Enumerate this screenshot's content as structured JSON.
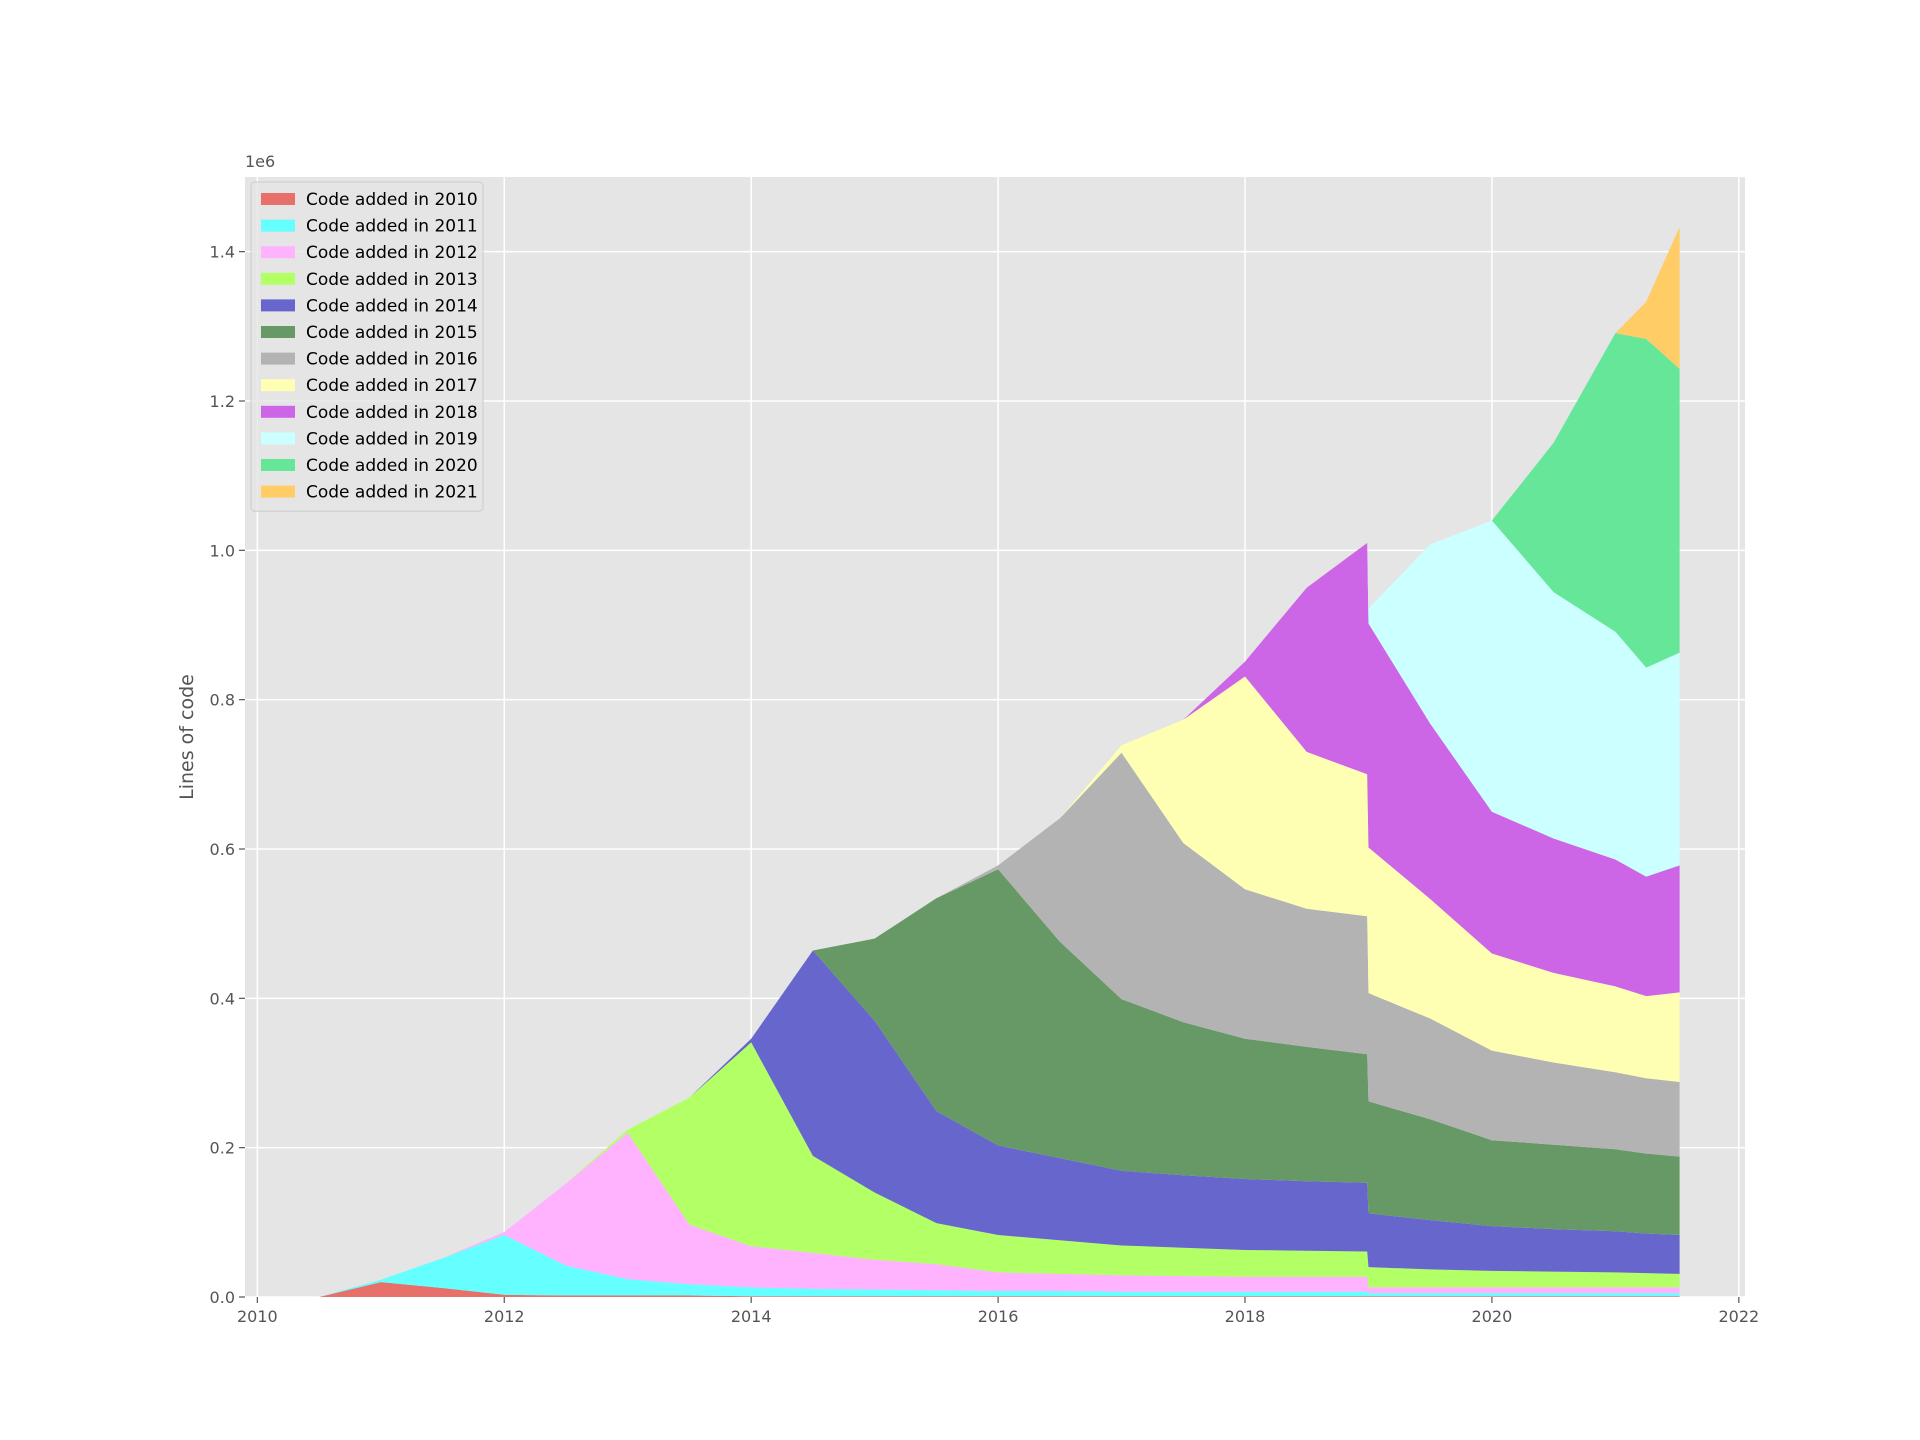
{
  "chart_data": {
    "type": "area",
    "stacked": true,
    "title": "",
    "xlabel": "",
    "ylabel": "Lines of code",
    "y_scale_note": "1e6",
    "xlim": [
      2009.9,
      2022.05
    ],
    "ylim": [
      0,
      1.5
    ],
    "x_ticks": [
      2010,
      2012,
      2014,
      2016,
      2018,
      2020,
      2022
    ],
    "y_ticks": [
      0.0,
      0.2,
      0.4,
      0.6,
      0.8,
      1.0,
      1.2,
      1.4
    ],
    "grid": true,
    "legend_position": "top-left",
    "x": [
      2010.5,
      2011.0,
      2011.5,
      2012.0,
      2012.5,
      2013.0,
      2013.5,
      2014.0,
      2014.5,
      2015.0,
      2015.5,
      2016.0,
      2016.5,
      2017.0,
      2017.5,
      2018.0,
      2018.5,
      2018.99,
      2019.0,
      2019.5,
      2020.0,
      2020.5,
      2021.0,
      2021.25,
      2021.52
    ],
    "series": [
      {
        "name": "Code added in 2010",
        "color": "#e8706b",
        "values": [
          0.0,
          0.02,
          0.012,
          0.003,
          0.002,
          0.002,
          0.002,
          0.001,
          0.001,
          0.001,
          0.001,
          0.001,
          0.001,
          0.001,
          0.001,
          0.001,
          0.001,
          0.001,
          0.001,
          0.001,
          0.001,
          0.001,
          0.001,
          0.001,
          0.001
        ]
      },
      {
        "name": "Code added in 2011",
        "color": "#66ffff",
        "values": [
          0.0,
          0.003,
          0.04,
          0.08,
          0.04,
          0.022,
          0.015,
          0.012,
          0.01,
          0.009,
          0.008,
          0.007,
          0.007,
          0.006,
          0.006,
          0.006,
          0.006,
          0.006,
          0.004,
          0.004,
          0.004,
          0.004,
          0.004,
          0.004,
          0.004
        ]
      },
      {
        "name": "Code added in 2012",
        "color": "#ffb3ff",
        "values": [
          0.0,
          0.0,
          0.0,
          0.004,
          0.11,
          0.196,
          0.08,
          0.055,
          0.048,
          0.04,
          0.035,
          0.025,
          0.023,
          0.022,
          0.021,
          0.02,
          0.02,
          0.02,
          0.008,
          0.008,
          0.008,
          0.008,
          0.008,
          0.008,
          0.008
        ]
      },
      {
        "name": "Code added in 2013",
        "color": "#b3ff66",
        "values": [
          0.0,
          0.0,
          0.0,
          0.0,
          0.0,
          0.004,
          0.17,
          0.273,
          0.13,
          0.09,
          0.055,
          0.05,
          0.045,
          0.04,
          0.038,
          0.036,
          0.035,
          0.034,
          0.027,
          0.024,
          0.022,
          0.021,
          0.02,
          0.019,
          0.018
        ]
      },
      {
        "name": "Code added in 2014",
        "color": "#6666cc",
        "values": [
          0.0,
          0.0,
          0.0,
          0.0,
          0.0,
          0.0,
          0.0,
          0.005,
          0.275,
          0.23,
          0.15,
          0.12,
          0.11,
          0.1,
          0.097,
          0.095,
          0.093,
          0.092,
          0.072,
          0.066,
          0.06,
          0.057,
          0.055,
          0.053,
          0.052
        ]
      },
      {
        "name": "Code added in 2015",
        "color": "#669966",
        "values": [
          0.0,
          0.0,
          0.0,
          0.0,
          0.0,
          0.0,
          0.0,
          0.0,
          0.0,
          0.11,
          0.285,
          0.37,
          0.29,
          0.23,
          0.205,
          0.188,
          0.18,
          0.172,
          0.15,
          0.135,
          0.115,
          0.113,
          0.11,
          0.107,
          0.105
        ]
      },
      {
        "name": "Code added in 2016",
        "color": "#b3b3b3",
        "values": [
          0.0,
          0.0,
          0.0,
          0.0,
          0.0,
          0.0,
          0.0,
          0.0,
          0.0,
          0.0,
          0.0,
          0.005,
          0.165,
          0.33,
          0.24,
          0.2,
          0.185,
          0.185,
          0.145,
          0.135,
          0.12,
          0.11,
          0.103,
          0.101,
          0.1
        ]
      },
      {
        "name": "Code added in 2017",
        "color": "#ffffb3",
        "values": [
          0.0,
          0.0,
          0.0,
          0.0,
          0.0,
          0.0,
          0.0,
          0.0,
          0.0,
          0.0,
          0.0,
          0.0,
          0.0,
          0.01,
          0.165,
          0.285,
          0.21,
          0.19,
          0.195,
          0.16,
          0.13,
          0.12,
          0.115,
          0.11,
          0.12
        ]
      },
      {
        "name": "Code added in 2018",
        "color": "#cc66e6",
        "values": [
          0.0,
          0.0,
          0.0,
          0.0,
          0.0,
          0.0,
          0.0,
          0.0,
          0.0,
          0.0,
          0.0,
          0.0,
          0.0,
          0.0,
          0.0,
          0.02,
          0.22,
          0.31,
          0.3,
          0.235,
          0.19,
          0.18,
          0.17,
          0.16,
          0.17
        ]
      },
      {
        "name": "Code added in 2019",
        "color": "#ccffff",
        "values": [
          0.0,
          0.0,
          0.0,
          0.0,
          0.0,
          0.0,
          0.0,
          0.0,
          0.0,
          0.0,
          0.0,
          0.0,
          0.0,
          0.0,
          0.0,
          0.0,
          0.0,
          0.0,
          0.02,
          0.24,
          0.39,
          0.33,
          0.305,
          0.28,
          0.285
        ]
      },
      {
        "name": "Code added in 2020",
        "color": "#66e699",
        "values": [
          0.0,
          0.0,
          0.0,
          0.0,
          0.0,
          0.0,
          0.0,
          0.0,
          0.0,
          0.0,
          0.0,
          0.0,
          0.0,
          0.0,
          0.0,
          0.0,
          0.0,
          0.0,
          0.0,
          0.0,
          0.0,
          0.2,
          0.4,
          0.44,
          0.38
        ]
      },
      {
        "name": "Code added in 2021",
        "color": "#ffcc66",
        "values": [
          0.0,
          0.0,
          0.0,
          0.0,
          0.0,
          0.0,
          0.0,
          0.0,
          0.0,
          0.0,
          0.0,
          0.0,
          0.0,
          0.0,
          0.0,
          0.0,
          0.0,
          0.0,
          0.0,
          0.0,
          0.0,
          0.0,
          0.0,
          0.05,
          0.19
        ]
      }
    ]
  }
}
